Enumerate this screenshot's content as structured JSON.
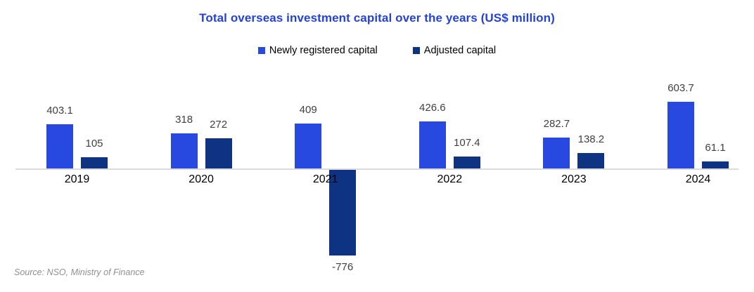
{
  "chart_data": {
    "type": "bar",
    "title": "Total overseas investment capital over the years (US$ million)",
    "categories": [
      "2019",
      "2020",
      "2021",
      "2022",
      "2023",
      "2024"
    ],
    "series": [
      {
        "name": "Newly registered capital",
        "color": "#2849DF",
        "values": [
          403.1,
          318,
          409,
          426.6,
          282.7,
          603.7
        ]
      },
      {
        "name": "Adjusted capital",
        "color": "#0E3383",
        "values": [
          105,
          272,
          -776,
          107.4,
          138.2,
          61.1
        ]
      }
    ],
    "unit": "US$ million",
    "legend_position": "top",
    "grid": false,
    "data_labels": true,
    "baseline_value": 0
  },
  "source_note": "Source: NSO, Ministry of Finance",
  "colors": {
    "title": "#2143DB",
    "value_label": "#404040",
    "year_label": "#000000",
    "axis_line": "#DBDBDB",
    "source": "#8F8F8F"
  }
}
